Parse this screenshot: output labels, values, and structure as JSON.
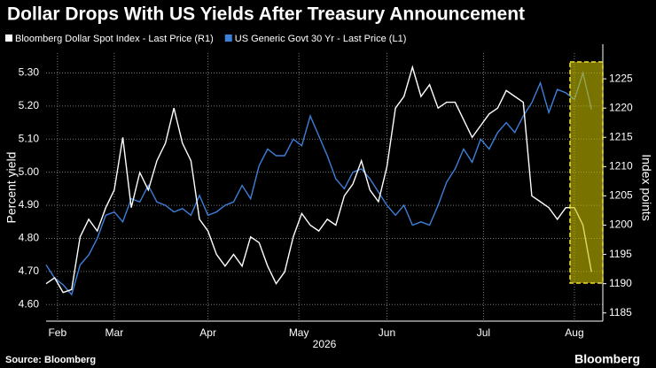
{
  "chart_data": {
    "type": "line",
    "title": "Dollar Drops With US Yields After Treasury Announcement",
    "ylabel": "Percent yield",
    "y2label": "Index points",
    "xlabel": "2026",
    "source": "Source: Bloomberg",
    "brand": "Bloomberg",
    "x": [
      0,
      3,
      6,
      9,
      12,
      15,
      18,
      21,
      24,
      27,
      30,
      33,
      36,
      39,
      42,
      45,
      48,
      51,
      54,
      57,
      60,
      63,
      66,
      69,
      72,
      75,
      78,
      81,
      84,
      87,
      90,
      93,
      96,
      99,
      102,
      105,
      108,
      111,
      114,
      117,
      120,
      123,
      126,
      129,
      132,
      135,
      138,
      141,
      144,
      147,
      150,
      153,
      156,
      159,
      162,
      165,
      168,
      171,
      174,
      177,
      180,
      183,
      186,
      189,
      192
    ],
    "xlim": [
      0,
      196
    ],
    "xticks": [
      {
        "value": 4,
        "label": "Feb"
      },
      {
        "value": 24,
        "label": "Mar"
      },
      {
        "value": 57,
        "label": "Apr"
      },
      {
        "value": 89,
        "label": "May"
      },
      {
        "value": 120,
        "label": "Jun"
      },
      {
        "value": 154,
        "label": "Jul"
      },
      {
        "value": 186,
        "label": "Aug"
      }
    ],
    "ylim": [
      4.55,
      5.36
    ],
    "yticks": [
      {
        "value": 4.6,
        "label": "4.60"
      },
      {
        "value": 4.7,
        "label": "4.70"
      },
      {
        "value": 4.8,
        "label": "4.80"
      },
      {
        "value": 4.9,
        "label": "4.90"
      },
      {
        "value": 5.0,
        "label": "5.00"
      },
      {
        "value": 5.1,
        "label": "5.10"
      },
      {
        "value": 5.2,
        "label": "5.20"
      },
      {
        "value": 5.3,
        "label": "5.30"
      }
    ],
    "y2lim": [
      1183.6,
      1229.4
    ],
    "y2ticks": [
      1185,
      1190,
      1195,
      1200,
      1205,
      1210,
      1215,
      1220,
      1225
    ],
    "grid": true,
    "series": [
      {
        "name": "Bloomberg Dollar Spot Index - Last Price (R1)",
        "color": "#ffffff",
        "axis": "y2",
        "values": [
          1190,
          1191,
          1188.5,
          1189,
          1198,
          1201,
          1199,
          1203,
          1206,
          1215,
          1203,
          1209,
          1206,
          1211,
          1214,
          1220,
          1214,
          1211,
          1201,
          1199,
          1195,
          1193,
          1195,
          1193,
          1198,
          1197,
          1193,
          1190,
          1192,
          1198,
          1202,
          1200,
          1199,
          1201,
          1200,
          1205,
          1207,
          1211,
          1206,
          1204,
          1210,
          1220,
          1222,
          1227,
          1222,
          1224,
          1220,
          1221,
          1221,
          1218,
          1215,
          1217,
          1219,
          1220,
          1223,
          1222,
          1221,
          1205,
          1204,
          1203,
          1201,
          1203,
          1203,
          1200,
          1192
        ]
      },
      {
        "name": "US Generic Govt 30 Yr - Last Price (L1)",
        "color": "#3d7fd9",
        "axis": "y",
        "values": [
          4.72,
          4.68,
          4.66,
          4.63,
          4.72,
          4.75,
          4.8,
          4.87,
          4.88,
          4.85,
          4.92,
          4.91,
          4.96,
          4.91,
          4.9,
          4.88,
          4.89,
          4.87,
          4.93,
          4.87,
          4.88,
          4.9,
          4.91,
          4.96,
          4.92,
          5.02,
          5.07,
          5.05,
          5.05,
          5.1,
          5.08,
          5.17,
          5.11,
          5.05,
          4.98,
          4.95,
          5.0,
          5.01,
          4.98,
          4.94,
          4.9,
          4.87,
          4.9,
          4.84,
          4.85,
          4.84,
          4.9,
          4.97,
          5.01,
          5.07,
          5.03,
          5.1,
          5.07,
          5.12,
          5.15,
          5.12,
          5.17,
          5.21,
          5.27,
          5.18,
          5.25,
          5.24,
          5.22,
          5.3,
          5.19
        ]
      }
    ]
  }
}
